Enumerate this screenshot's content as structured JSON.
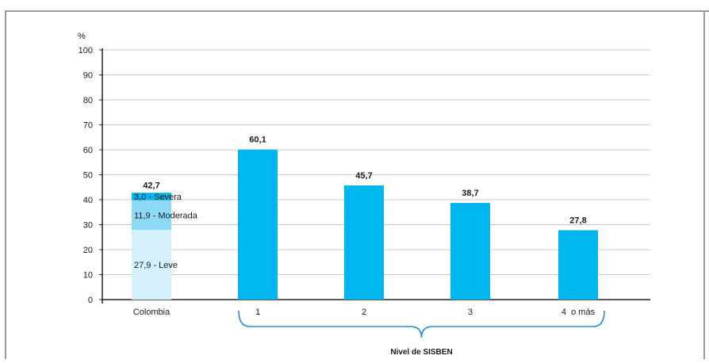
{
  "chart_data": {
    "type": "bar",
    "ylabel": "%",
    "ylim": [
      0,
      100
    ],
    "yticks": [
      0,
      10,
      20,
      30,
      40,
      50,
      60,
      70,
      80,
      90,
      100
    ],
    "grid": true,
    "colors": {
      "bar": "#00b6ee",
      "severa": "#00b6ee",
      "moderada": "#8fd9f6",
      "leve": "#d3f0fb",
      "grid": "#c8c8c8",
      "bracket": "#1e8fd6",
      "frame": "#999999"
    },
    "stacked_bar": {
      "category": "Colombia",
      "total": 42.7,
      "total_label": "42,7",
      "segments": [
        {
          "name": "Leve",
          "value": 27.9,
          "label": "27,9 - Leve",
          "color_key": "leve"
        },
        {
          "name": "Moderada",
          "value": 11.9,
          "label": "11,9 - Moderada",
          "color_key": "moderada"
        },
        {
          "name": "Severa",
          "value": 3.0,
          "label": "3,0 - Severa",
          "color_key": "severa"
        }
      ]
    },
    "categories": [
      "1",
      "2",
      "3",
      "4  o más"
    ],
    "values": [
      60.1,
      45.7,
      38.7,
      27.8
    ],
    "value_labels": [
      "60,1",
      "45,7",
      "38,7",
      "27,8"
    ],
    "group_label": "Nivel de SISBEN"
  }
}
